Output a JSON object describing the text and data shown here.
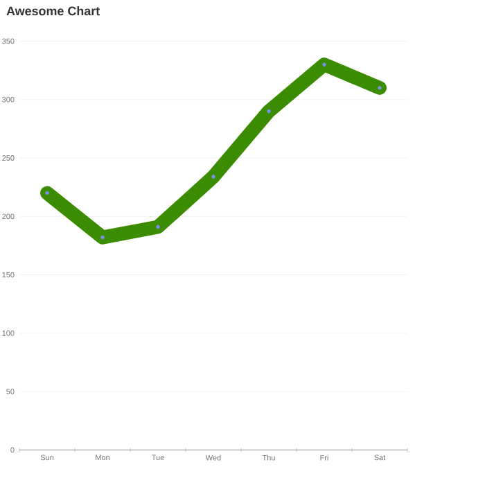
{
  "chart_data": {
    "type": "line",
    "title": "Awesome Chart",
    "categories": [
      "Sun",
      "Mon",
      "Tue",
      "Wed",
      "Thu",
      "Fri",
      "Sat"
    ],
    "series": [
      {
        "color": "#3c8c00",
        "colors": [
          "#7b8fe6",
          "#7b8fe6",
          "#7b8fe6",
          "#7b8fe6",
          "#7b8fe6",
          "#7b8fe6",
          "#7b8fe6"
        ],
        "values": [
          220,
          182,
          191,
          234,
          290,
          330,
          310
        ]
      }
    ],
    "ylim": [
      0,
      350
    ],
    "yticks": [
      0,
      50,
      100,
      150,
      200,
      250,
      300,
      350
    ],
    "grid": "y",
    "marker": "circle"
  }
}
